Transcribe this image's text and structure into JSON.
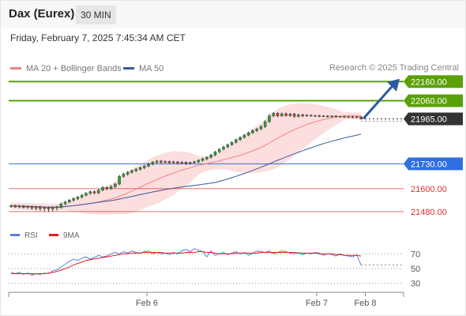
{
  "header": {
    "title": "Dax (Eurex)",
    "timeframe": "30 MIN"
  },
  "timestamp": "Friday, February 7, 2025 7:45:34 AM CET",
  "legend": {
    "bollinger": {
      "label": "MA 20 + Bollinger Bands",
      "color": "#f08080"
    },
    "ma50": {
      "label": "MA 50",
      "color": "#3a5a9a"
    }
  },
  "credit": "Research © 2025 Trading Central",
  "rsi_legend": {
    "rsi": {
      "label": "RSI",
      "color": "#5b7fd6"
    },
    "ma9": {
      "label": "9MA",
      "color": "#e02020"
    }
  },
  "chart_data": [
    {
      "type": "candlestick",
      "ylim": [
        21440,
        22200
      ],
      "price_levels": [
        {
          "label": "22160.00",
          "value": 22160,
          "kind": "target",
          "color": "#5aa00a"
        },
        {
          "label": "22060.00",
          "value": 22060,
          "kind": "target",
          "color": "#5aa00a"
        },
        {
          "label": "21965.00",
          "value": 21965,
          "kind": "last",
          "color": "#333333"
        },
        {
          "label": "21730.00",
          "value": 21730,
          "kind": "pivot",
          "color": "#2f6fe0"
        },
        {
          "label": "21600.00",
          "value": 21600,
          "kind": "support",
          "color": "#e03030"
        },
        {
          "label": "21480.00",
          "value": 21480,
          "kind": "support",
          "color": "#e03030"
        }
      ],
      "x_ticks": [
        "Feb 6",
        "Feb 7",
        "Feb 8"
      ],
      "x_tick_positions": [
        0.35,
        0.78,
        0.903
      ],
      "candles": [
        [
          21506,
          21512,
          21500,
          21515
        ],
        [
          21512,
          21504,
          21500,
          21516
        ],
        [
          21504,
          21510,
          21498,
          21514
        ],
        [
          21510,
          21502,
          21496,
          21514
        ],
        [
          21502,
          21508,
          21494,
          21512
        ],
        [
          21508,
          21498,
          21490,
          21512
        ],
        [
          21498,
          21506,
          21486,
          21510
        ],
        [
          21506,
          21496,
          21484,
          21510
        ],
        [
          21496,
          21502,
          21482,
          21506
        ],
        [
          21502,
          21494,
          21480,
          21506
        ],
        [
          21494,
          21504,
          21482,
          21508
        ],
        [
          21504,
          21500,
          21486,
          21510
        ],
        [
          21500,
          21520,
          21496,
          21528
        ],
        [
          21520,
          21530,
          21514,
          21536
        ],
        [
          21530,
          21540,
          21524,
          21546
        ],
        [
          21540,
          21548,
          21532,
          21554
        ],
        [
          21548,
          21556,
          21540,
          21562
        ],
        [
          21556,
          21566,
          21548,
          21572
        ],
        [
          21566,
          21576,
          21560,
          21582
        ],
        [
          21576,
          21584,
          21568,
          21590
        ],
        [
          21584,
          21578,
          21570,
          21592
        ],
        [
          21578,
          21592,
          21572,
          21598
        ],
        [
          21592,
          21606,
          21586,
          21612
        ],
        [
          21606,
          21600,
          21590,
          21612
        ],
        [
          21600,
          21610,
          21594,
          21618
        ],
        [
          21610,
          21624,
          21604,
          21630
        ],
        [
          21624,
          21664,
          21618,
          21672
        ],
        [
          21664,
          21676,
          21658,
          21684
        ],
        [
          21676,
          21686,
          21668,
          21692
        ],
        [
          21686,
          21694,
          21678,
          21700
        ],
        [
          21694,
          21702,
          21686,
          21708
        ],
        [
          21702,
          21710,
          21694,
          21716
        ],
        [
          21710,
          21718,
          21702,
          21724
        ],
        [
          21718,
          21730,
          21712,
          21736
        ],
        [
          21730,
          21738,
          21722,
          21744
        ],
        [
          21738,
          21744,
          21730,
          21750
        ],
        [
          21744,
          21738,
          21730,
          21750
        ],
        [
          21738,
          21742,
          21732,
          21748
        ],
        [
          21742,
          21736,
          21728,
          21746
        ],
        [
          21736,
          21740,
          21730,
          21746
        ],
        [
          21740,
          21734,
          21726,
          21744
        ],
        [
          21734,
          21738,
          21728,
          21744
        ],
        [
          21738,
          21732,
          21724,
          21742
        ],
        [
          21732,
          21736,
          21726,
          21742
        ],
        [
          21736,
          21740,
          21730,
          21746
        ],
        [
          21740,
          21748,
          21734,
          21754
        ],
        [
          21748,
          21756,
          21740,
          21762
        ],
        [
          21756,
          21764,
          21748,
          21770
        ],
        [
          21764,
          21776,
          21758,
          21782
        ],
        [
          21776,
          21792,
          21770,
          21798
        ],
        [
          21792,
          21806,
          21786,
          21812
        ],
        [
          21806,
          21818,
          21800,
          21824
        ],
        [
          21818,
          21830,
          21812,
          21836
        ],
        [
          21830,
          21842,
          21824,
          21848
        ],
        [
          21842,
          21856,
          21836,
          21862
        ],
        [
          21856,
          21868,
          21850,
          21874
        ],
        [
          21868,
          21880,
          21862,
          21886
        ],
        [
          21880,
          21892,
          21874,
          21898
        ],
        [
          21892,
          21904,
          21886,
          21910
        ],
        [
          21904,
          21912,
          21896,
          21918
        ],
        [
          21912,
          21924,
          21906,
          21932
        ],
        [
          21924,
          21950,
          21918,
          21958
        ],
        [
          21950,
          21980,
          21944,
          21990
        ],
        [
          21980,
          21994,
          21974,
          22000
        ],
        [
          21994,
          21980,
          21974,
          22000
        ],
        [
          21980,
          21992,
          21976,
          21998
        ],
        [
          21992,
          21982,
          21976,
          21998
        ],
        [
          21982,
          21990,
          21976,
          21996
        ],
        [
          21990,
          21978,
          21970,
          21996
        ],
        [
          21978,
          21986,
          21972,
          21992
        ],
        [
          21986,
          21980,
          21974,
          21992
        ],
        [
          21980,
          21984,
          21976,
          21990
        ],
        [
          21984,
          21980,
          21976,
          21988
        ],
        [
          21980,
          21982,
          21976,
          21986
        ],
        [
          21982,
          21978,
          21974,
          21986
        ],
        [
          21978,
          21980,
          21974,
          21984
        ],
        [
          21980,
          21976,
          21972,
          21984
        ],
        [
          21976,
          21980,
          21972,
          21984
        ],
        [
          21980,
          21976,
          21972,
          21984
        ],
        [
          21976,
          21978,
          21972,
          21982
        ],
        [
          21978,
          21974,
          21970,
          21982
        ],
        [
          21974,
          21976,
          21970,
          21980
        ],
        [
          21976,
          21972,
          21968,
          21980
        ],
        [
          21972,
          21976,
          21968,
          21980
        ],
        [
          21976,
          21966,
          21962,
          21980
        ]
      ]
    },
    {
      "type": "line",
      "title": "RSI",
      "ylim": [
        20,
        80
      ],
      "y_ticks": [
        "70",
        "50",
        "30"
      ],
      "y_tick_values": [
        70,
        50,
        30
      ],
      "series": [
        {
          "name": "RSI",
          "color": "#5b7fd6",
          "values": [
            45,
            43,
            45,
            42,
            44,
            41,
            43,
            42,
            44,
            43,
            47,
            48,
            52,
            56,
            60,
            63,
            61,
            64,
            66,
            63,
            65,
            68,
            66,
            67,
            70,
            72,
            70,
            73,
            71,
            74,
            72,
            71,
            73,
            74,
            70,
            72,
            70,
            71,
            69,
            72,
            70,
            74,
            76,
            73,
            77,
            75,
            73,
            66,
            74,
            68,
            70,
            72,
            69,
            71,
            73,
            70,
            72,
            68,
            71,
            74,
            73,
            72,
            74,
            70,
            72,
            74,
            73,
            71,
            70,
            72,
            69,
            71,
            70,
            72,
            71,
            68,
            70,
            69,
            67,
            70,
            68,
            67,
            66,
            69,
            55
          ]
        },
        {
          "name": "9MA",
          "color": "#e02020",
          "values": [
            43,
            43,
            43,
            43,
            43,
            43,
            43,
            43,
            43,
            44,
            45,
            46,
            48,
            50,
            52,
            55,
            57,
            59,
            61,
            62,
            63,
            64,
            65,
            66,
            67,
            68,
            69,
            70,
            70,
            71,
            71,
            71,
            72,
            72,
            72,
            72,
            72,
            71,
            71,
            71,
            71,
            71,
            72,
            72,
            72,
            73,
            73,
            72,
            72,
            71,
            70,
            70,
            70,
            70,
            71,
            71,
            71,
            71,
            71,
            71,
            72,
            72,
            72,
            72,
            72,
            72,
            72,
            72,
            72,
            71,
            71,
            71,
            71,
            71,
            70,
            70,
            70,
            70,
            69,
            69,
            68,
            68,
            68,
            68,
            67
          ]
        }
      ]
    }
  ]
}
